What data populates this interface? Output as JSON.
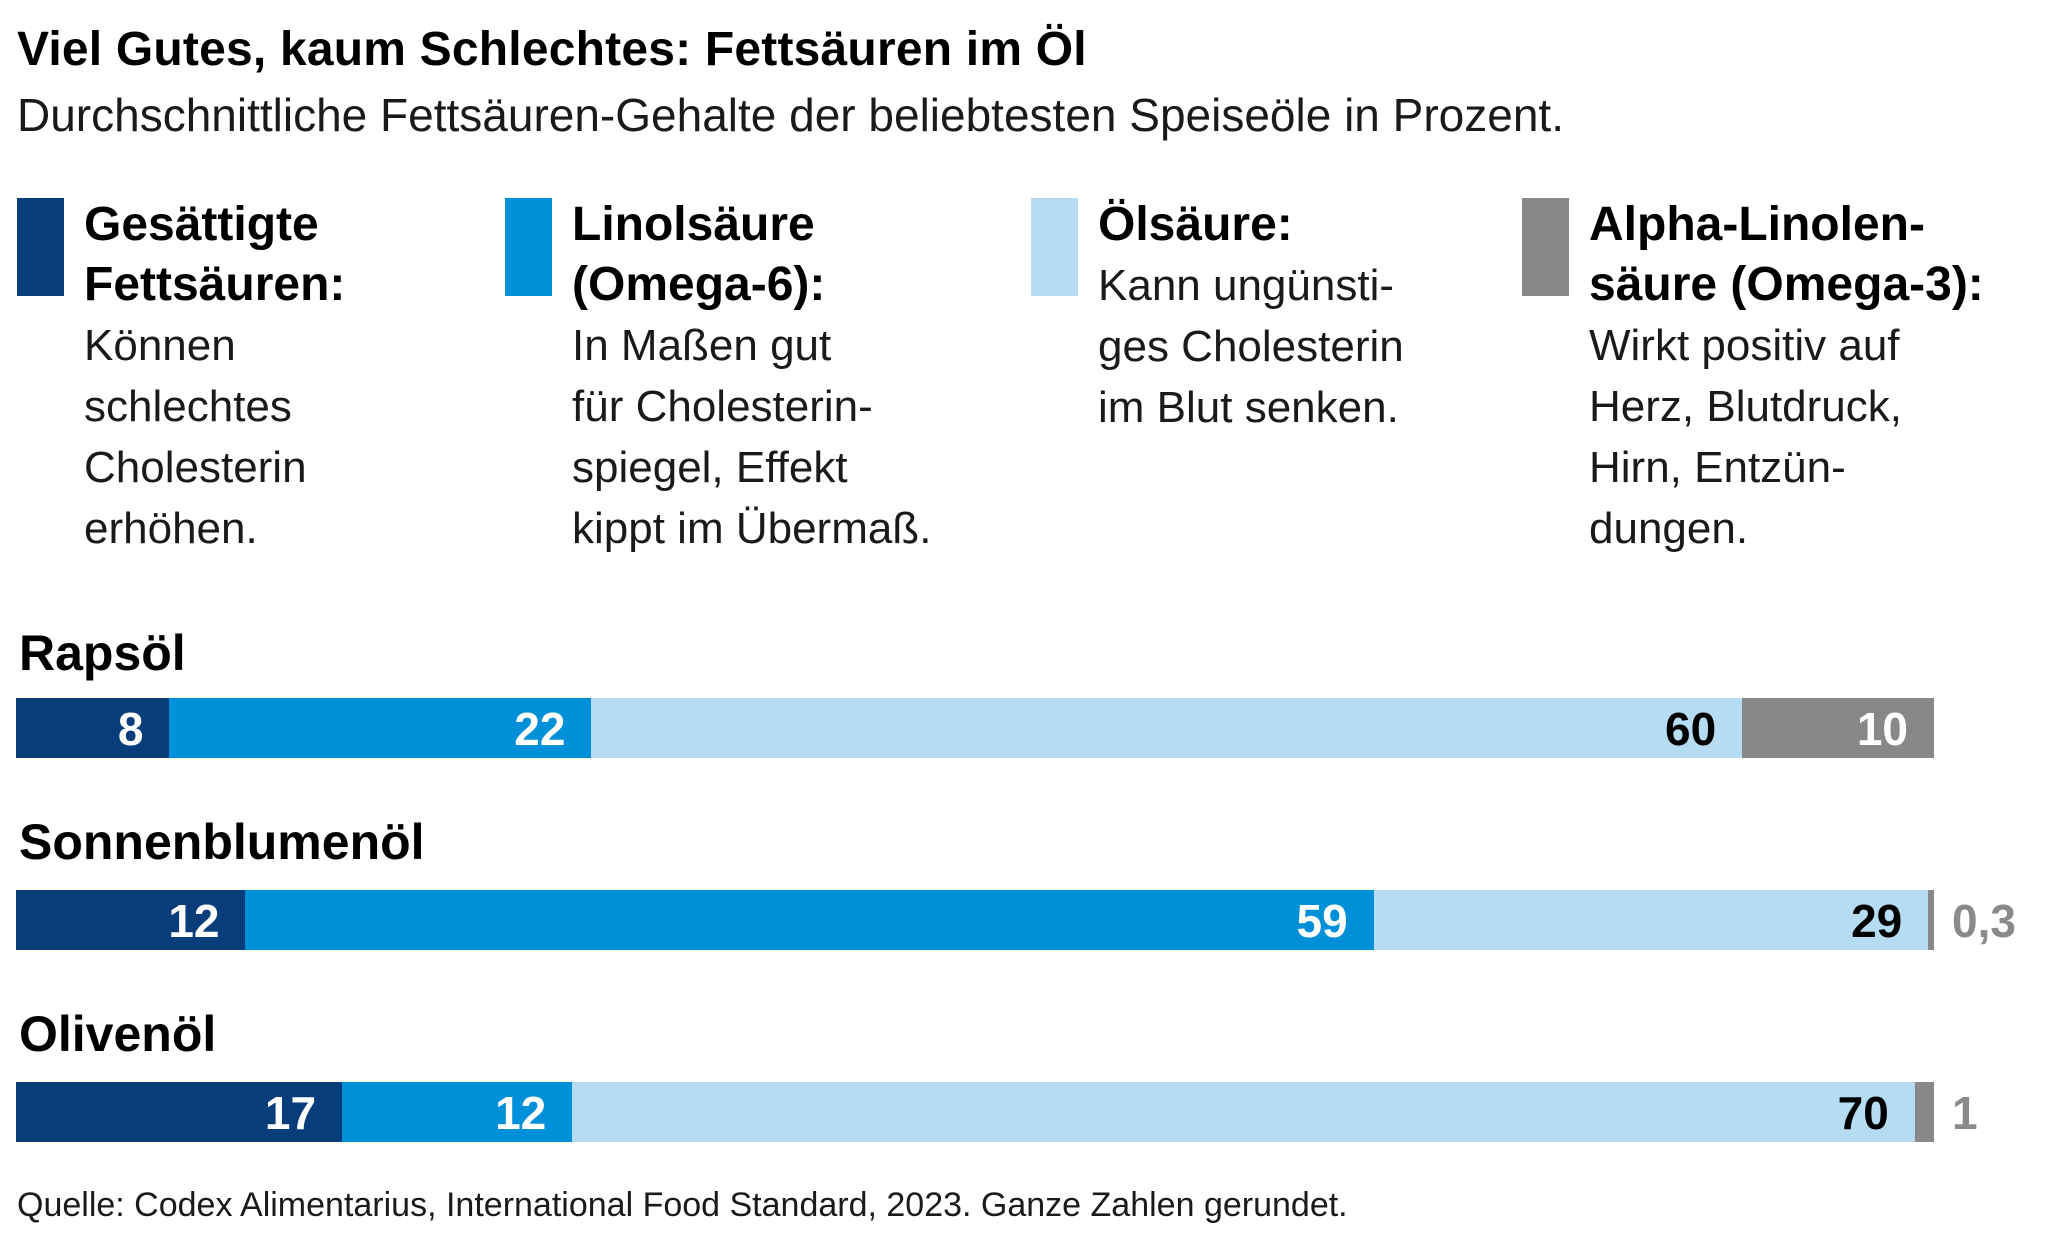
{
  "title": "Viel Gutes, kaum Schlechtes: Fettsäuren im Öl",
  "subtitle": "Durchschnittliche Fettsäuren-Gehalte der beliebtesten Speiseöle in Prozent.",
  "legend": [
    {
      "head": [
        "Gesättigte",
        "Fettsäuren:"
      ],
      "desc": [
        "Können",
        "schlechtes",
        "Cholesterin",
        "erhöhen."
      ],
      "color": "#063d7a"
    },
    {
      "head": [
        "Linolsäure",
        "(Omega-6):"
      ],
      "desc": [
        "In Maßen gut",
        "für Cholesterin-",
        "spiegel, Effekt",
        "kippt im Übermaß."
      ],
      "color": "#0090d9"
    },
    {
      "head": [
        "Ölsäure:"
      ],
      "desc": [
        "Kann ungünsti-",
        "ges Cholesterin",
        "im Blut senken."
      ],
      "color": "#b6dcf3"
    },
    {
      "head": [
        "Alpha-Linolen-",
        "säure (Omega-3):"
      ],
      "desc": [
        "Wirkt positiv auf",
        "Herz, Blutdruck,",
        "Hirn, Entzün-",
        "dungen."
      ],
      "color": "#888888"
    }
  ],
  "chart_data": {
    "type": "bar",
    "orientation": "horizontal",
    "stacked": true,
    "unit": "percent",
    "categories": [
      "Rapsöl",
      "Sonnenblumenöl",
      "Olivenöl"
    ],
    "series": [
      {
        "name": "Gesättigte Fettsäuren",
        "values": [
          8,
          12,
          17
        ],
        "labels": [
          "8",
          "12",
          "17"
        ]
      },
      {
        "name": "Linolsäure (Omega-6)",
        "values": [
          22,
          59,
          12
        ],
        "labels": [
          "22",
          "59",
          "12"
        ]
      },
      {
        "name": "Ölsäure",
        "values": [
          60,
          29,
          70
        ],
        "labels": [
          "60",
          "29",
          "70"
        ]
      },
      {
        "name": "Alpha-Linolensäure (Omega-3)",
        "values": [
          10,
          0.3,
          1
        ],
        "labels": [
          "10",
          "0,3",
          "1"
        ]
      }
    ],
    "colors": [
      "#063d7a",
      "#0090d9",
      "#b6dcf3",
      "#888888"
    ],
    "label_colors": [
      "#ffffff",
      "#ffffff",
      "#000000",
      "#ffffff"
    ],
    "xlim": [
      0,
      100
    ]
  },
  "source": "Quelle: Codex Alimentarius, International Food Standard, 2023. Ganze Zahlen gerundet."
}
